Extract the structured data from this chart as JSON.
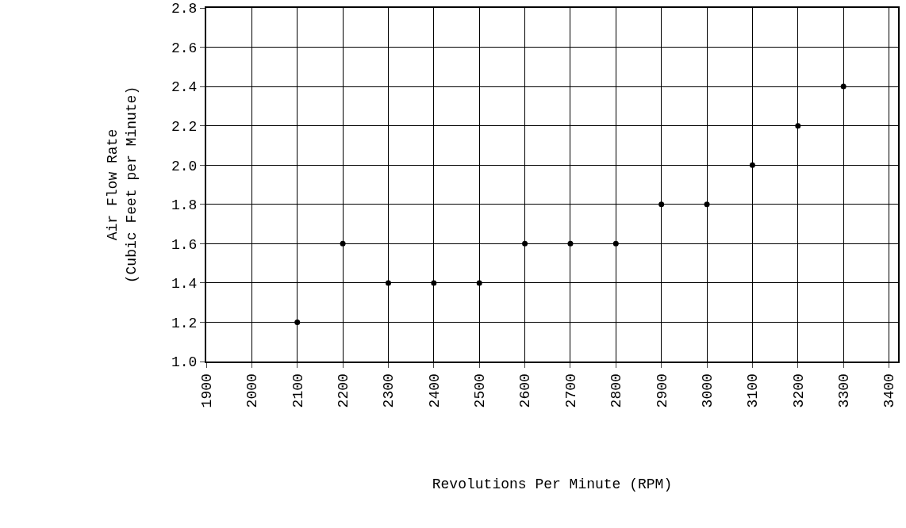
{
  "chart_data": {
    "type": "scatter",
    "xlabel": "Revolutions Per Minute (RPM)",
    "ylabel": "Air Flow Rate\n(Cubic Feet per Minute)",
    "x": [
      2100,
      2200,
      2300,
      2400,
      2500,
      2600,
      2700,
      2800,
      2900,
      3000,
      3100,
      3200,
      3300
    ],
    "series": [
      {
        "color": "#000000",
        "values": [
          1.2,
          1.6,
          1.4,
          1.4,
          1.4,
          1.6,
          1.6,
          1.6,
          1.8,
          1.8,
          2.0,
          2.2,
          2.4
        ]
      }
    ],
    "xlim": [
      1900,
      3420
    ],
    "xticks": [
      1900,
      2000,
      2100,
      2200,
      2300,
      2400,
      2500,
      2600,
      2700,
      2800,
      2900,
      3000,
      3100,
      3200,
      3300,
      3400
    ],
    "ylim": [
      1.0,
      2.8
    ],
    "yticks": [
      {
        "value": 1.0,
        "label": "1.0"
      },
      1.2,
      1.4,
      1.6,
      1.8,
      {
        "value": 2.0,
        "label": "2.0"
      },
      2.2,
      2.4,
      2.6,
      2.8
    ],
    "grid": true,
    "marker": "circle"
  }
}
